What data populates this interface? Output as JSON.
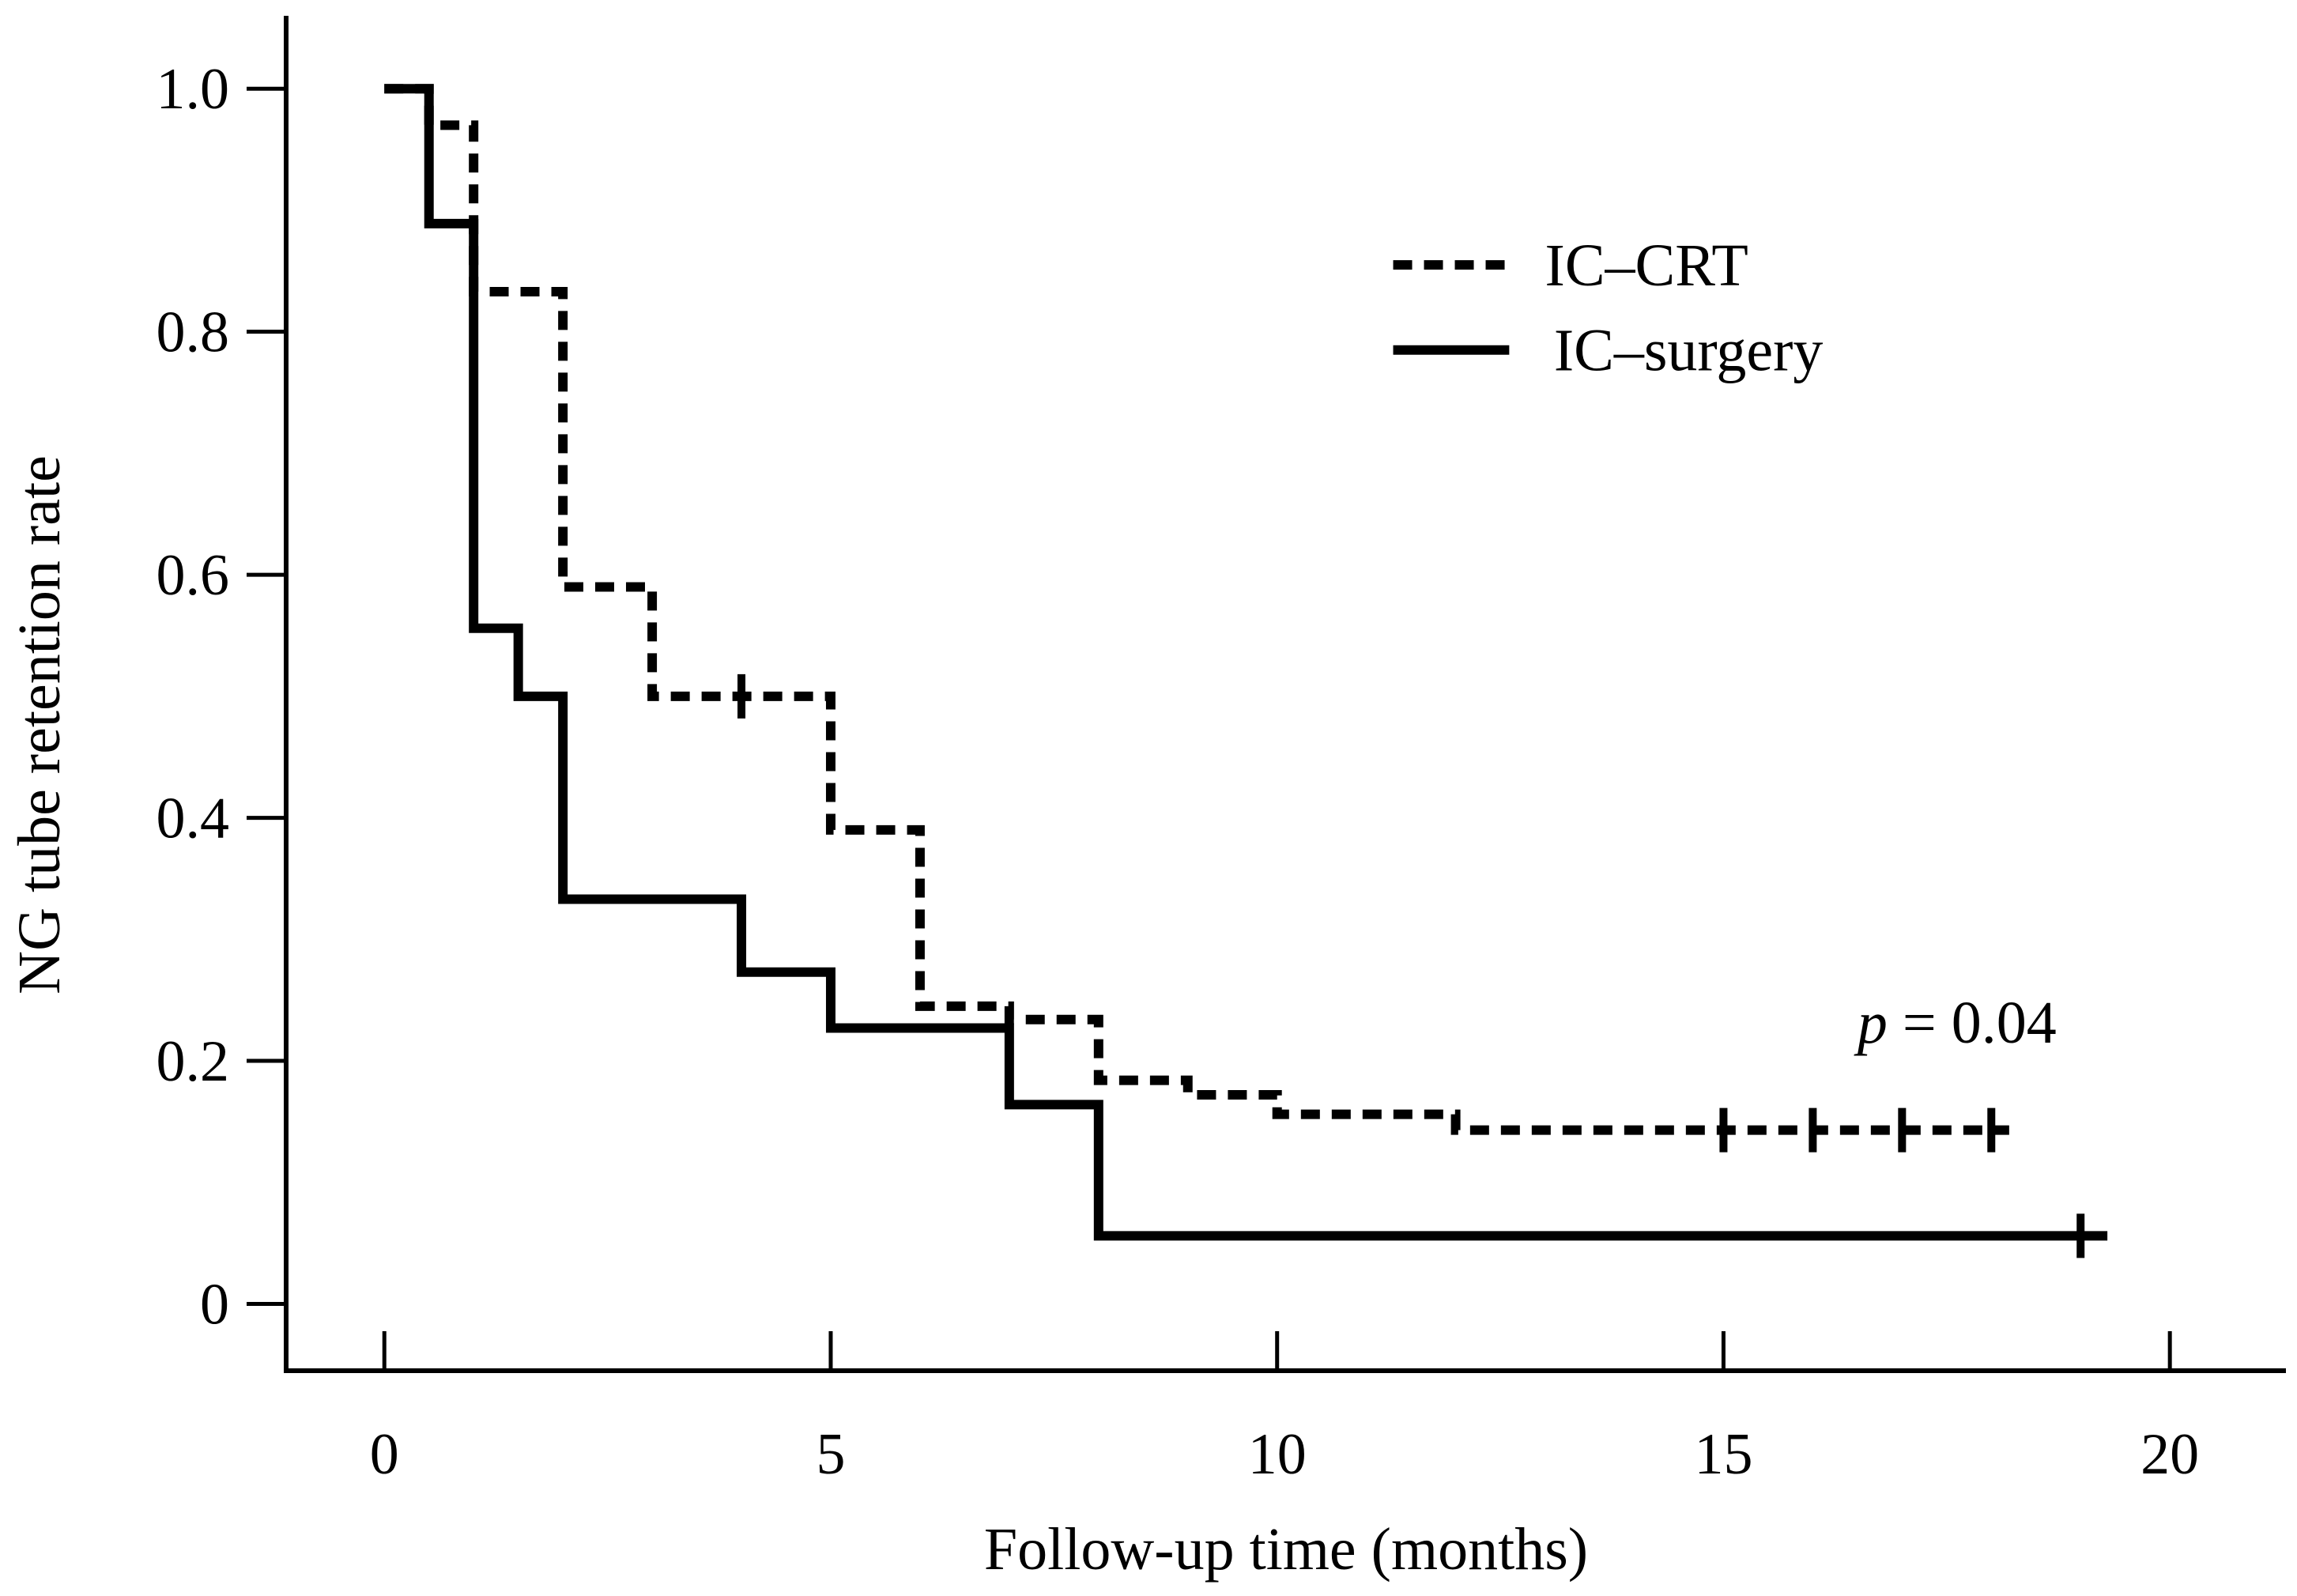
{
  "chart_data": {
    "type": "line",
    "subtype": "kaplan-meier-step",
    "title": "",
    "xlabel": "Follow-up time (months)",
    "ylabel": "NG tube retention rate",
    "xlim": [
      -1.1,
      21.3
    ],
    "ylim": [
      -0.055,
      1.06
    ],
    "xticks": [
      0,
      5,
      10,
      15,
      20
    ],
    "xtick_labels": [
      "0",
      "5",
      "10",
      "15",
      "20"
    ],
    "yticks": [
      0,
      0.2,
      0.4,
      0.6,
      0.8,
      1.0
    ],
    "ytick_labels": [
      "0",
      "0.2",
      "0.4",
      "0.6",
      "0.8",
      "1.0"
    ],
    "legend_position": "upper-right",
    "series": [
      {
        "name": "IC–CRT",
        "line_style": "dashed",
        "color": "#000000",
        "x": [
          0,
          0.5,
          1.0,
          2.0,
          3.0,
          5.0,
          6.0,
          7.0,
          8.0,
          9.0,
          10.0,
          12.0,
          18.2
        ],
        "y": [
          1.0,
          0.97,
          0.833,
          0.59,
          0.5,
          0.39,
          0.245,
          0.234,
          0.184,
          0.172,
          0.156,
          0.143,
          0.143
        ],
        "censor_x": [
          4.0,
          15.0,
          16.0,
          17.0,
          18.0
        ]
      },
      {
        "name": "IC–surgery",
        "line_style": "solid",
        "color": "#000000",
        "x": [
          0,
          0.5,
          1.0,
          1.5,
          2.0,
          4.0,
          5.0,
          7.0,
          8.0,
          19.3
        ],
        "y": [
          1.0,
          0.889,
          0.556,
          0.5,
          0.333,
          0.273,
          0.227,
          0.164,
          0.056,
          0.056
        ],
        "censor_x": [
          19.0
        ]
      }
    ],
    "annotations": [
      {
        "italic": "p",
        "text": " = 0.04"
      }
    ]
  }
}
